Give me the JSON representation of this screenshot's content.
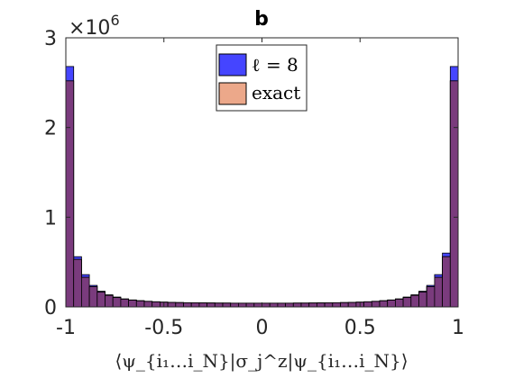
{
  "chart_data": {
    "type": "bar",
    "title": "b",
    "xlabel": "⟨ψ_{i₁…i_N}|σ_j^z|ψ_{i₁…i_N}⟩",
    "ylabel": "",
    "xlim": [
      -1,
      1
    ],
    "ylim": [
      0,
      3000000
    ],
    "y_multiplier_label": "×10",
    "y_multiplier_exp": "6",
    "x_ticks": [
      "-1",
      "-0.5",
      "0",
      "0.5",
      "1"
    ],
    "y_ticks": [
      "0",
      "1",
      "2",
      "3"
    ],
    "bin_width": 0.04,
    "bin_centers": [
      -0.98,
      -0.94,
      -0.9,
      -0.86,
      -0.82,
      -0.78,
      -0.74,
      -0.7,
      -0.66,
      -0.62,
      -0.58,
      -0.54,
      -0.5,
      -0.46,
      -0.42,
      -0.38,
      -0.34,
      -0.3,
      -0.26,
      -0.22,
      -0.18,
      -0.14,
      -0.1,
      -0.06,
      -0.02,
      0.02,
      0.06,
      0.1,
      0.14,
      0.18,
      0.22,
      0.26,
      0.3,
      0.34,
      0.38,
      0.42,
      0.46,
      0.5,
      0.54,
      0.58,
      0.62,
      0.66,
      0.7,
      0.74,
      0.78,
      0.82,
      0.86,
      0.9,
      0.94,
      0.98
    ],
    "series": [
      {
        "name": "ℓ = 8",
        "color": "#4545ff",
        "values": [
          2680000,
          560000,
          360000,
          240000,
          175000,
          135000,
          110000,
          90000,
          78000,
          70000,
          63000,
          58000,
          54000,
          51000,
          49000,
          47000,
          46000,
          45000,
          44000,
          43000,
          43000,
          42000,
          42000,
          42000,
          42000,
          42000,
          42000,
          42000,
          42000,
          43000,
          43000,
          44000,
          45000,
          46000,
          47000,
          49000,
          51000,
          54000,
          58000,
          63000,
          70000,
          78000,
          90000,
          110000,
          135000,
          175000,
          240000,
          360000,
          600000,
          2680000
        ]
      },
      {
        "name": "exact",
        "color": "#eca88a",
        "values": [
          2520000,
          530000,
          330000,
          225000,
          165000,
          128000,
          104000,
          86000,
          75000,
          67000,
          61000,
          56000,
          52000,
          49000,
          47000,
          46000,
          45000,
          44000,
          43000,
          42000,
          42000,
          41000,
          41000,
          41000,
          41000,
          41000,
          41000,
          41000,
          41000,
          42000,
          42000,
          43000,
          44000,
          45000,
          46000,
          47000,
          49000,
          52000,
          56000,
          61000,
          67000,
          75000,
          86000,
          104000,
          128000,
          165000,
          225000,
          330000,
          560000,
          2520000
        ]
      }
    ],
    "overlap_color": "#7a3b7d",
    "legend_position": "top-center"
  }
}
